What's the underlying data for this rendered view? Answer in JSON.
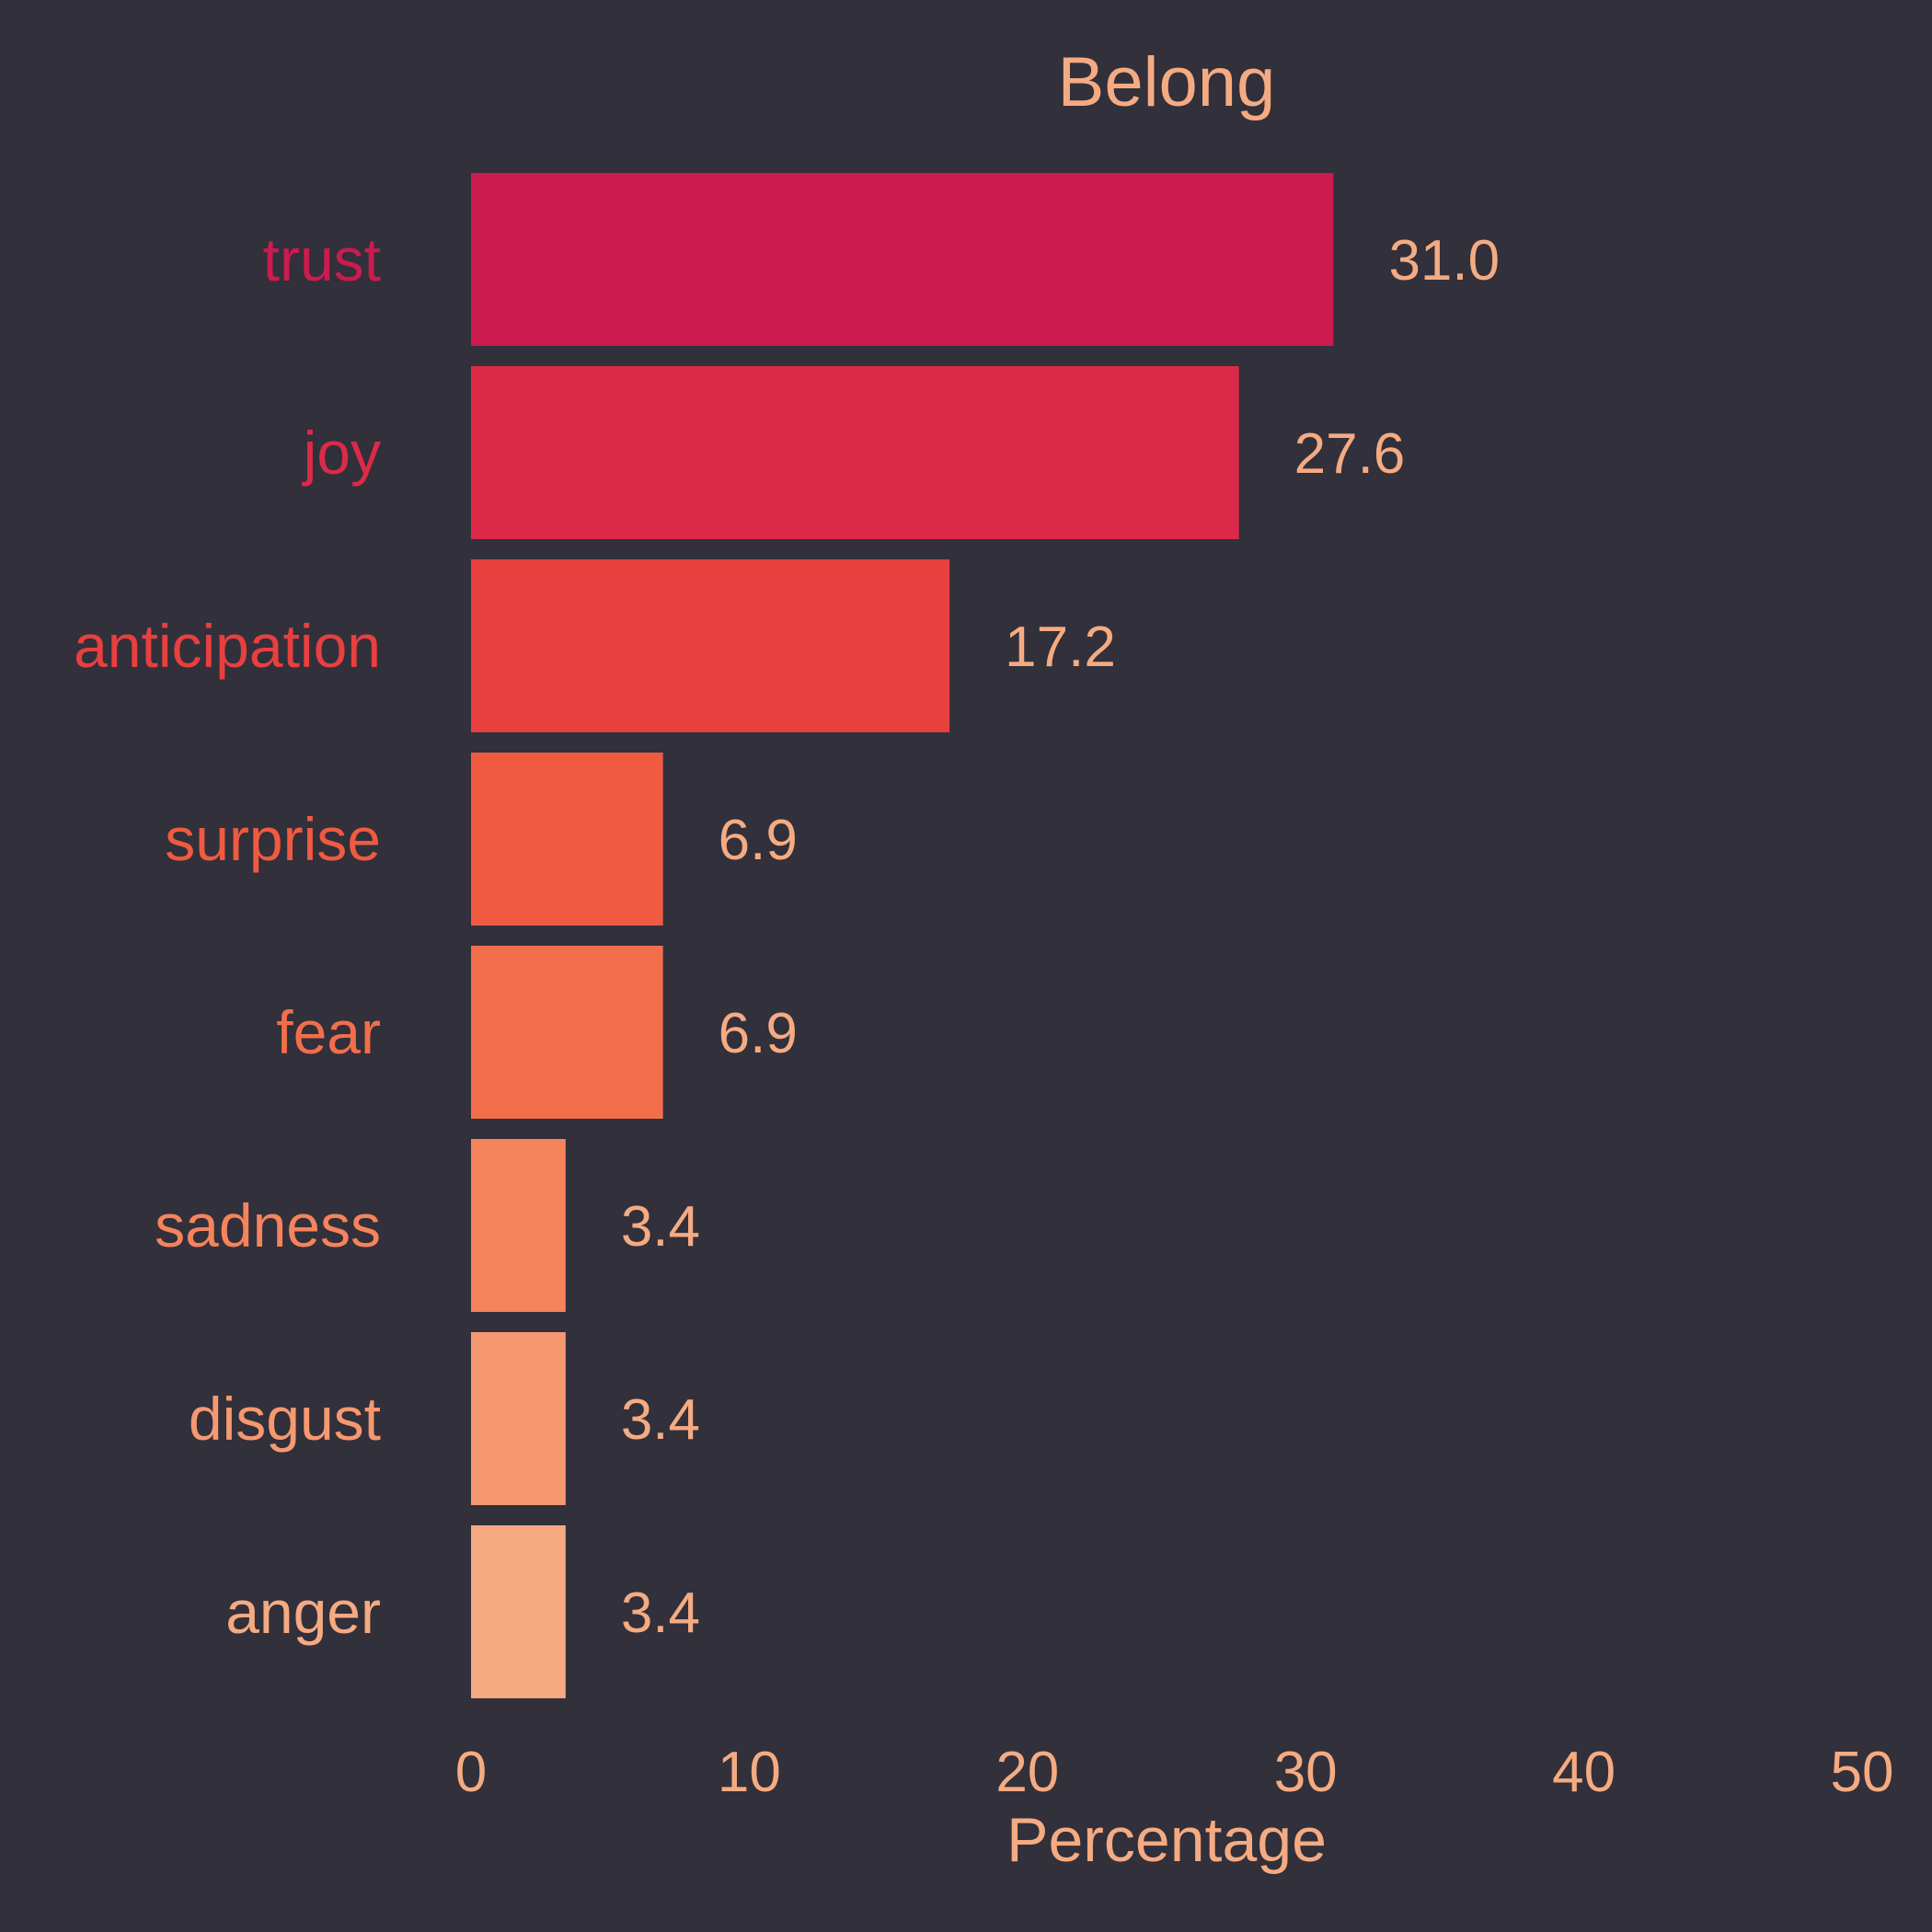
{
  "chart_data": {
    "type": "bar",
    "orientation": "horizontal",
    "title": "Belong",
    "xlabel": "Percentage",
    "ylabel": "",
    "xlim": [
      0,
      50
    ],
    "x_ticks": [
      0,
      10,
      20,
      30,
      40,
      50
    ],
    "grid": false,
    "legend": "none",
    "categories": [
      "trust",
      "joy",
      "anticipation",
      "surprise",
      "fear",
      "sadness",
      "disgust",
      "anger"
    ],
    "values": [
      31.0,
      27.6,
      17.2,
      6.9,
      6.9,
      3.4,
      3.4,
      3.4
    ],
    "value_labels": [
      "31.0",
      "27.6",
      "17.2",
      "6.9",
      "6.9",
      "3.4",
      "3.4",
      "3.4"
    ],
    "colors": [
      "#cb1b4f",
      "#dc2a48",
      "#e83f3f",
      "#f05a40",
      "#f26e4b",
      "#f5835c",
      "#f69870",
      "#f5aa82"
    ],
    "text_color": "#f5ab82",
    "background": "#31303b"
  }
}
